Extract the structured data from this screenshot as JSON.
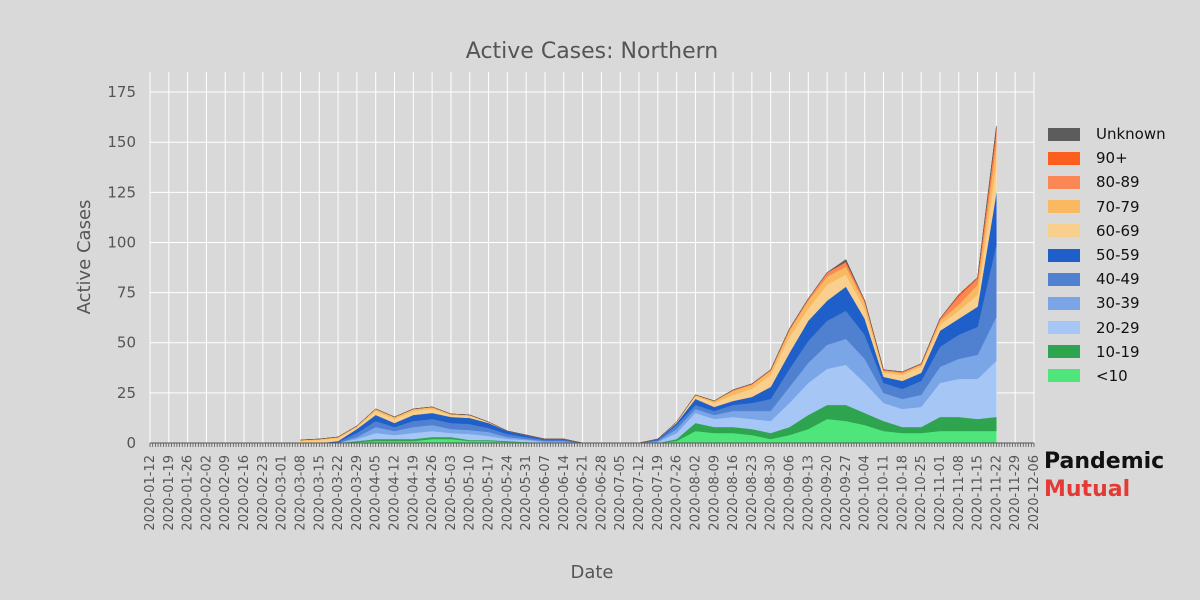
{
  "chart_data": {
    "type": "area",
    "title": "Active Cases: Northern",
    "xlabel": "Date",
    "ylabel": "Active Cases",
    "ylim": [
      0,
      185
    ],
    "yticks": [
      0,
      25,
      50,
      75,
      100,
      125,
      150,
      175
    ],
    "xlim": [
      "2020-01-12",
      "2020-12-06"
    ],
    "xticks": [
      "2020-01-12",
      "2020-01-19",
      "2020-01-26",
      "2020-02-02",
      "2020-02-09",
      "2020-02-16",
      "2020-02-23",
      "2020-03-01",
      "2020-03-08",
      "2020-03-15",
      "2020-03-22",
      "2020-03-29",
      "2020-04-05",
      "2020-04-12",
      "2020-04-19",
      "2020-04-26",
      "2020-05-03",
      "2020-05-10",
      "2020-05-17",
      "2020-05-24",
      "2020-05-31",
      "2020-06-07",
      "2020-06-14",
      "2020-06-21",
      "2020-06-28",
      "2020-07-05",
      "2020-07-12",
      "2020-07-19",
      "2020-07-26",
      "2020-08-02",
      "2020-08-09",
      "2020-08-16",
      "2020-08-23",
      "2020-08-30",
      "2020-09-06",
      "2020-09-13",
      "2020-09-20",
      "2020-09-27",
      "2020-10-04",
      "2020-10-11",
      "2020-10-18",
      "2020-10-25",
      "2020-11-01",
      "2020-11-08",
      "2020-11-15",
      "2020-11-22",
      "2020-11-29",
      "2020-12-06"
    ],
    "stacked": true,
    "grid": true,
    "legend_position": "right",
    "x": [
      "2020-03-08",
      "2020-03-15",
      "2020-03-22",
      "2020-03-29",
      "2020-04-05",
      "2020-04-12",
      "2020-04-19",
      "2020-04-26",
      "2020-05-03",
      "2020-05-10",
      "2020-05-17",
      "2020-05-24",
      "2020-05-31",
      "2020-06-07",
      "2020-06-14",
      "2020-06-21",
      "2020-06-28",
      "2020-07-05",
      "2020-07-12",
      "2020-07-19",
      "2020-07-26",
      "2020-08-02",
      "2020-08-09",
      "2020-08-16",
      "2020-08-23",
      "2020-08-30",
      "2020-09-06",
      "2020-09-13",
      "2020-09-20",
      "2020-09-27",
      "2020-10-04",
      "2020-10-11",
      "2020-10-18",
      "2020-10-25",
      "2020-11-01",
      "2020-11-08",
      "2020-11-15",
      "2020-11-22"
    ],
    "series": [
      {
        "name": "<10",
        "color": "#4ee67a",
        "values": [
          0,
          0,
          0,
          0.5,
          1,
          1,
          1,
          2,
          2,
          1,
          1,
          0.5,
          0.5,
          0,
          0,
          0,
          0,
          0,
          0,
          0,
          1,
          6,
          5,
          5,
          4,
          2,
          4,
          7,
          12,
          11,
          9,
          6,
          5,
          5,
          6,
          6,
          6,
          6
        ]
      },
      {
        "name": "10-19",
        "color": "#2ea44f",
        "values": [
          0,
          0,
          0,
          0.5,
          1,
          1,
          1,
          1,
          1,
          0.5,
          0.5,
          0.5,
          0,
          0,
          0,
          0,
          0,
          0,
          0,
          0,
          1,
          4,
          3,
          3,
          3,
          3,
          4,
          7,
          7,
          8,
          6,
          5,
          3,
          3,
          7,
          7,
          6,
          7
        ]
      },
      {
        "name": "20-29",
        "color": "#a6c6f5",
        "values": [
          0,
          0,
          0,
          1,
          3,
          2,
          3,
          3,
          2,
          3,
          2,
          1,
          1,
          0.5,
          0.5,
          0,
          0,
          0,
          0,
          0.5,
          3,
          5,
          4,
          5,
          5,
          6,
          12,
          16,
          18,
          20,
          15,
          9,
          9,
          10,
          17,
          19,
          20,
          28
        ]
      },
      {
        "name": "30-39",
        "color": "#7aa6e8",
        "values": [
          0,
          0,
          0,
          1,
          3,
          2,
          3,
          3,
          2,
          2,
          2,
          1,
          0.5,
          0.5,
          0.5,
          0,
          0,
          0,
          0,
          0.5,
          2,
          2,
          2,
          3,
          4,
          5,
          8,
          10,
          12,
          13,
          12,
          5,
          5,
          6,
          8,
          10,
          12,
          22
        ]
      },
      {
        "name": "40-49",
        "color": "#5081d1",
        "values": [
          0,
          0,
          0.5,
          2,
          3,
          2,
          3,
          3,
          3,
          3,
          2,
          1.5,
          1,
          0.5,
          0.5,
          0,
          0,
          0,
          0,
          0.5,
          2,
          2,
          2,
          3,
          4,
          6,
          9,
          11,
          12,
          14,
          12,
          5,
          5,
          7,
          10,
          12,
          14,
          36
        ]
      },
      {
        "name": "50-59",
        "color": "#1f5fc9",
        "values": [
          0,
          0,
          0.5,
          2,
          3,
          2,
          3,
          3,
          3,
          3,
          2.5,
          1.5,
          1,
          0.5,
          0.5,
          0,
          0,
          0,
          0,
          0.5,
          1,
          3,
          2,
          2,
          3,
          6,
          8,
          10,
          10,
          12,
          8,
          3,
          4,
          4,
          8,
          8,
          10,
          26
        ]
      },
      {
        "name": "60-69",
        "color": "#f8cf8c",
        "values": [
          1,
          1.5,
          1.5,
          1,
          2,
          2,
          2,
          2,
          1,
          1,
          0.5,
          0,
          0,
          0,
          0,
          0,
          0,
          0,
          0,
          0,
          0.5,
          1.5,
          2,
          3,
          4,
          6,
          8,
          6,
          8,
          6,
          5,
          2,
          3,
          3,
          3,
          4,
          6,
          14
        ]
      },
      {
        "name": "70-79",
        "color": "#f9b961",
        "values": [
          0.5,
          0.5,
          0.5,
          0.5,
          1,
          1,
          1,
          1,
          0.5,
          0.5,
          0,
          0,
          0,
          0,
          0,
          0,
          0,
          0,
          0,
          0,
          0,
          0.5,
          1,
          2,
          2,
          2,
          3,
          4,
          4,
          4,
          3,
          1,
          1,
          1,
          2,
          3,
          5,
          10
        ]
      },
      {
        "name": "80-89",
        "color": "#fa8754",
        "values": [
          0,
          0,
          0,
          0,
          0,
          0,
          0,
          0,
          0,
          0,
          0,
          0,
          0,
          0,
          0,
          0,
          0,
          0,
          0,
          0,
          0,
          0,
          0,
          0.5,
          0.5,
          0.5,
          1,
          1,
          2,
          2,
          1,
          0.5,
          0.5,
          0.5,
          1,
          4,
          3,
          6
        ]
      },
      {
        "name": "90+",
        "color": "#fb5f20",
        "values": [
          0,
          0,
          0,
          0,
          0,
          0,
          0,
          0,
          0,
          0,
          0,
          0,
          0,
          0,
          0,
          0,
          0,
          0,
          0,
          0,
          0,
          0,
          0,
          0,
          0,
          0,
          0,
          0,
          0,
          0.5,
          0,
          0,
          0,
          0,
          0,
          1,
          0.5,
          2
        ]
      },
      {
        "name": "Unknown",
        "color": "#5c5c5c",
        "values": [
          0,
          0,
          0,
          0,
          0,
          0,
          0,
          0,
          0,
          0,
          0,
          0,
          0,
          0,
          0,
          0,
          0,
          0,
          0,
          0,
          0,
          0,
          0,
          0,
          0,
          0,
          0,
          0,
          0,
          1,
          0,
          0,
          0,
          0,
          0,
          0,
          0,
          1
        ]
      }
    ]
  },
  "legend_order": [
    "Unknown",
    "90+",
    "80-89",
    "70-79",
    "60-69",
    "50-59",
    "40-49",
    "30-39",
    "20-29",
    "10-19",
    "<10"
  ],
  "brand": {
    "line1": "Pandemic",
    "line2": "Mutual",
    "color1": "#111111",
    "color2": "#e53935"
  }
}
